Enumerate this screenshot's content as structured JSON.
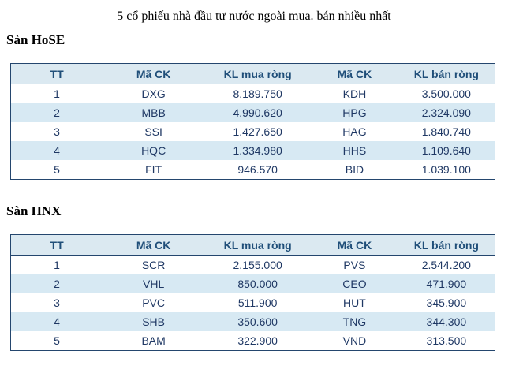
{
  "page": {
    "title": "5 cổ phiếu nhà đầu tư nước ngoài mua. bán nhiều nhất"
  },
  "colors": {
    "table_border": "#24466e",
    "header_background": "#dbe9f1",
    "header_text": "#1f4e79",
    "stripe_background": "#d7e9f3",
    "cell_text": "#1f3864"
  },
  "sections": [
    {
      "heading": "Sàn HoSE",
      "table": {
        "headers": [
          "TT",
          "Mã CK",
          "KL mua ròng",
          "Mã CK",
          "KL bán ròng"
        ],
        "rows": [
          [
            "1",
            "DXG",
            "8.189.750",
            "KDH",
            "3.500.000"
          ],
          [
            "2",
            "MBB",
            "4.990.620",
            "HPG",
            "2.324.090"
          ],
          [
            "3",
            "SSI",
            "1.427.650",
            "HAG",
            "1.840.740"
          ],
          [
            "4",
            "HQC",
            "1.334.980",
            "HHS",
            "1.109.640"
          ],
          [
            "5",
            "FIT",
            "946.570",
            "BID",
            "1.039.100"
          ]
        ]
      }
    },
    {
      "heading": "Sàn HNX",
      "table": {
        "headers": [
          "TT",
          "Mã CK",
          "KL mua ròng",
          "Mã CK",
          "KL bán ròng"
        ],
        "rows": [
          [
            "1",
            "SCR",
            "2.155.000",
            "PVS",
            "2.544.200"
          ],
          [
            "2",
            "VHL",
            "850.000",
            "CEO",
            "471.900"
          ],
          [
            "3",
            "PVC",
            "511.900",
            "HUT",
            "345.900"
          ],
          [
            "4",
            "SHB",
            "350.600",
            "TNG",
            "344.300"
          ],
          [
            "5",
            "BAM",
            "322.900",
            "VND",
            "313.500"
          ]
        ]
      }
    }
  ]
}
